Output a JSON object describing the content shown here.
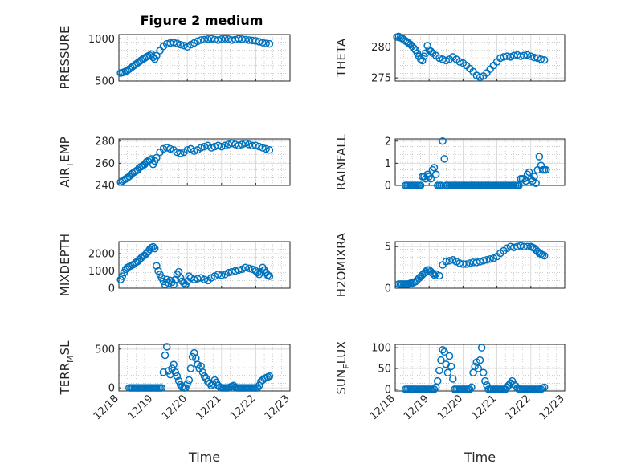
{
  "figure": {
    "title": "Figure 2 medium",
    "marker_color": "#0072BD",
    "axis_color": "#262626",
    "grid_color": "#b0b0b0"
  },
  "chart_data": [
    {
      "type": "scatter",
      "ylabel": "PRESSURE",
      "ylim": [
        500,
        1050
      ],
      "yticks": [
        500,
        1000
      ],
      "ytick_labels": [
        "500",
        "1000"
      ],
      "xlim": [
        0,
        5
      ],
      "x": [
        0.05,
        0.1,
        0.15,
        0.2,
        0.25,
        0.3,
        0.35,
        0.4,
        0.45,
        0.5,
        0.55,
        0.6,
        0.65,
        0.7,
        0.75,
        0.8,
        0.85,
        0.9,
        0.95,
        1.0,
        1.05,
        1.1,
        1.2,
        1.3,
        1.4,
        1.5,
        1.6,
        1.7,
        1.8,
        1.9,
        2.0,
        2.1,
        2.2,
        2.3,
        2.4,
        2.5,
        2.6,
        2.7,
        2.8,
        2.9,
        3.0,
        3.1,
        3.2,
        3.3,
        3.4,
        3.5,
        3.6,
        3.7,
        3.8,
        3.9,
        4.0,
        4.1,
        4.2,
        4.3,
        4.4
      ],
      "y": [
        595,
        600,
        605,
        615,
        625,
        640,
        655,
        670,
        685,
        700,
        715,
        730,
        745,
        760,
        770,
        785,
        795,
        805,
        820,
        780,
        760,
        800,
        860,
        910,
        940,
        950,
        955,
        945,
        930,
        920,
        905,
        930,
        950,
        970,
        985,
        990,
        995,
        1000,
        990,
        985,
        995,
        1000,
        995,
        985,
        990,
        1000,
        995,
        990,
        985,
        980,
        975,
        965,
        955,
        945,
        940
      ]
    },
    {
      "type": "scatter",
      "ylabel": "THETA",
      "ylim": [
        274.5,
        282
      ],
      "yticks": [
        275,
        280
      ],
      "ytick_labels": [
        "275",
        "280"
      ],
      "xlim": [
        0,
        5
      ],
      "x": [
        0.05,
        0.1,
        0.15,
        0.2,
        0.25,
        0.3,
        0.35,
        0.4,
        0.45,
        0.5,
        0.55,
        0.6,
        0.65,
        0.7,
        0.75,
        0.8,
        0.85,
        0.9,
        0.95,
        1.0,
        1.05,
        1.1,
        1.2,
        1.3,
        1.4,
        1.5,
        1.6,
        1.7,
        1.8,
        1.9,
        2.0,
        2.1,
        2.2,
        2.3,
        2.4,
        2.5,
        2.6,
        2.7,
        2.8,
        2.9,
        3.0,
        3.1,
        3.2,
        3.3,
        3.4,
        3.5,
        3.6,
        3.7,
        3.8,
        3.9,
        4.0,
        4.1,
        4.2,
        4.3,
        4.4
      ],
      "y": [
        281.6,
        281.7,
        281.5,
        281.4,
        281.2,
        281.0,
        280.8,
        280.6,
        280.4,
        280.1,
        279.8,
        279.5,
        279.0,
        278.5,
        278.0,
        277.8,
        278.5,
        279.0,
        280.2,
        279.5,
        279.3,
        279.0,
        278.6,
        278.2,
        278.0,
        277.8,
        278.0,
        278.4,
        278.0,
        277.6,
        277.4,
        277.0,
        276.5,
        276.0,
        275.4,
        275.1,
        275.3,
        275.8,
        276.4,
        277.0,
        277.6,
        278.2,
        278.4,
        278.5,
        278.4,
        278.6,
        278.7,
        278.5,
        278.6,
        278.7,
        278.5,
        278.3,
        278.2,
        278.0,
        277.9
      ]
    },
    {
      "type": "scatter",
      "ylabel": "AIR_TEMP",
      "ylim": [
        240,
        282
      ],
      "yticks": [
        240,
        260,
        280
      ],
      "ytick_labels": [
        "240",
        "260",
        "280"
      ],
      "xlim": [
        0,
        5
      ],
      "x": [
        0.05,
        0.1,
        0.15,
        0.2,
        0.25,
        0.3,
        0.35,
        0.4,
        0.45,
        0.5,
        0.55,
        0.6,
        0.65,
        0.7,
        0.75,
        0.8,
        0.85,
        0.9,
        0.95,
        1.0,
        1.05,
        1.1,
        1.2,
        1.3,
        1.4,
        1.5,
        1.6,
        1.7,
        1.8,
        1.9,
        2.0,
        2.1,
        2.2,
        2.3,
        2.4,
        2.5,
        2.6,
        2.7,
        2.8,
        2.9,
        3.0,
        3.1,
        3.2,
        3.3,
        3.4,
        3.5,
        3.6,
        3.7,
        3.8,
        3.9,
        4.0,
        4.1,
        4.2,
        4.3,
        4.4
      ],
      "y": [
        243,
        244,
        245,
        246,
        247,
        248,
        250,
        251,
        252,
        253,
        254,
        256,
        257,
        258,
        259,
        261,
        262,
        263,
        264,
        259,
        262,
        265,
        270,
        273,
        274,
        273,
        272,
        270,
        269,
        270,
        272,
        273,
        271,
        272,
        274,
        275,
        276,
        274,
        275,
        276,
        275,
        276,
        277,
        278,
        277,
        276,
        277,
        278,
        277,
        276,
        276,
        275,
        274,
        273,
        272
      ]
    },
    {
      "type": "scatter",
      "ylabel": "RAINFALL",
      "ylim": [
        0,
        2.1
      ],
      "yticks": [
        0,
        1,
        2
      ],
      "ytick_labels": [
        "0",
        "1",
        "2"
      ],
      "xlim": [
        0,
        5
      ],
      "x": [
        0.3,
        0.35,
        0.4,
        0.45,
        0.5,
        0.55,
        0.6,
        0.65,
        0.7,
        0.75,
        0.8,
        0.85,
        0.9,
        0.95,
        1.0,
        1.05,
        1.1,
        1.15,
        1.2,
        1.25,
        1.3,
        1.35,
        1.4,
        1.45,
        1.5,
        1.55,
        1.6,
        1.65,
        1.7,
        1.75,
        1.8,
        1.85,
        1.9,
        1.95,
        2.0,
        2.05,
        2.1,
        2.15,
        2.2,
        2.25,
        2.3,
        2.35,
        2.4,
        2.45,
        2.5,
        2.55,
        2.6,
        2.65,
        2.7,
        2.75,
        2.8,
        2.85,
        2.9,
        2.95,
        3.0,
        3.05,
        3.1,
        3.15,
        3.2,
        3.25,
        3.3,
        3.35,
        3.4,
        3.45,
        3.5,
        3.55,
        3.6,
        3.65,
        3.7,
        3.75,
        3.8,
        3.85,
        3.9,
        3.95,
        4.0,
        4.05,
        4.1,
        4.15,
        4.2,
        4.25,
        4.3,
        4.35,
        4.4,
        4.45
      ],
      "y": [
        0,
        0,
        0,
        0,
        0,
        0,
        0,
        0,
        0,
        0,
        0.4,
        0.4,
        0.3,
        0.5,
        0.4,
        0.3,
        0.7,
        0.8,
        0.5,
        0,
        0,
        0,
        2.0,
        1.2,
        0,
        0,
        0,
        0,
        0,
        0,
        0,
        0,
        0,
        0,
        0,
        0,
        0,
        0,
        0,
        0,
        0,
        0,
        0,
        0,
        0,
        0,
        0,
        0,
        0,
        0,
        0,
        0,
        0,
        0,
        0,
        0,
        0,
        0,
        0,
        0,
        0,
        0,
        0,
        0,
        0,
        0,
        0,
        0,
        0.3,
        0.3,
        0.3,
        0.2,
        0.5,
        0.6,
        0.3,
        0.2,
        0.4,
        0.1,
        0.7,
        1.3,
        0.9,
        0.7,
        0.7,
        0.7
      ]
    },
    {
      "type": "scatter",
      "ylabel": "MIXDEPTH",
      "ylim": [
        0,
        2700
      ],
      "yticks": [
        0,
        1000,
        2000
      ],
      "ytick_labels": [
        "0",
        "1000",
        "2000"
      ],
      "xlim": [
        0,
        5
      ],
      "x": [
        0.05,
        0.1,
        0.15,
        0.2,
        0.25,
        0.3,
        0.35,
        0.4,
        0.45,
        0.5,
        0.55,
        0.6,
        0.65,
        0.7,
        0.75,
        0.8,
        0.85,
        0.9,
        0.95,
        1.0,
        1.05,
        1.1,
        1.15,
        1.2,
        1.25,
        1.3,
        1.35,
        1.4,
        1.45,
        1.5,
        1.55,
        1.6,
        1.65,
        1.7,
        1.75,
        1.8,
        1.85,
        1.9,
        1.95,
        2.0,
        2.05,
        2.1,
        2.2,
        2.3,
        2.4,
        2.5,
        2.6,
        2.7,
        2.8,
        2.9,
        3.0,
        3.1,
        3.2,
        3.3,
        3.4,
        3.5,
        3.6,
        3.7,
        3.8,
        3.9,
        4.0,
        4.05,
        4.1,
        4.15,
        4.2,
        4.25,
        4.3,
        4.35,
        4.4
      ],
      "y": [
        500,
        700,
        900,
        1100,
        1200,
        1250,
        1300,
        1350,
        1400,
        1500,
        1550,
        1650,
        1750,
        1850,
        1900,
        2000,
        2100,
        2250,
        2350,
        2400,
        2300,
        1300,
        1000,
        800,
        600,
        400,
        200,
        500,
        300,
        450,
        350,
        200,
        500,
        800,
        950,
        600,
        400,
        300,
        200,
        400,
        700,
        600,
        500,
        550,
        600,
        500,
        450,
        600,
        700,
        800,
        750,
        800,
        900,
        950,
        1000,
        1050,
        1100,
        1200,
        1150,
        1100,
        1000,
        900,
        800,
        950,
        1200,
        1050,
        900,
        750,
        700
      ]
    },
    {
      "type": "scatter",
      "ylabel": "H2OMIXRA",
      "ylim": [
        0,
        5.6
      ],
      "yticks": [
        0,
        5
      ],
      "ytick_labels": [
        "0",
        "5"
      ],
      "xlim": [
        0,
        5
      ],
      "x": [
        0.1,
        0.15,
        0.2,
        0.25,
        0.3,
        0.35,
        0.4,
        0.45,
        0.5,
        0.55,
        0.6,
        0.65,
        0.7,
        0.75,
        0.8,
        0.85,
        0.9,
        0.95,
        1.0,
        1.05,
        1.1,
        1.15,
        1.2,
        1.3,
        1.4,
        1.5,
        1.6,
        1.7,
        1.8,
        1.9,
        2.0,
        2.1,
        2.2,
        2.3,
        2.4,
        2.5,
        2.6,
        2.7,
        2.8,
        2.9,
        3.0,
        3.1,
        3.2,
        3.3,
        3.4,
        3.5,
        3.6,
        3.7,
        3.8,
        3.9,
        4.0,
        4.05,
        4.1,
        4.15,
        4.2,
        4.25,
        4.3,
        4.35,
        4.4
      ],
      "y": [
        0.5,
        0.5,
        0.5,
        0.5,
        0.5,
        0.5,
        0.5,
        0.6,
        0.6,
        0.7,
        0.8,
        1.0,
        1.2,
        1.4,
        1.6,
        1.8,
        2.0,
        2.2,
        2.2,
        2.0,
        1.8,
        1.6,
        1.7,
        1.5,
        2.8,
        3.2,
        3.3,
        3.4,
        3.2,
        3.0,
        2.9,
        2.9,
        3.0,
        3.1,
        3.1,
        3.2,
        3.3,
        3.4,
        3.5,
        3.6,
        3.8,
        4.2,
        4.5,
        4.8,
        5.0,
        4.9,
        5.0,
        5.1,
        5.0,
        5.0,
        5.0,
        4.9,
        4.8,
        4.6,
        4.4,
        4.2,
        4.1,
        4.0,
        3.9
      ]
    },
    {
      "type": "scatter",
      "ylabel": "TERR_MSL",
      "ylim": [
        -40,
        560
      ],
      "yticks": [
        0,
        500
      ],
      "ytick_labels": [
        "0",
        "500"
      ],
      "xlim": [
        0,
        5
      ],
      "xticks": [
        0,
        1,
        2,
        3,
        4,
        5
      ],
      "xtick_labels": [
        "12/18",
        "12/19",
        "12/20",
        "12/21",
        "12/22",
        "12/23"
      ],
      "xlabel": "Time",
      "x": [
        0.3,
        0.35,
        0.4,
        0.45,
        0.5,
        0.55,
        0.6,
        0.65,
        0.7,
        0.75,
        0.8,
        0.85,
        0.9,
        0.95,
        1.0,
        1.05,
        1.1,
        1.15,
        1.2,
        1.25,
        1.3,
        1.35,
        1.4,
        1.45,
        1.5,
        1.55,
        1.6,
        1.65,
        1.7,
        1.75,
        1.8,
        1.85,
        1.9,
        1.95,
        2.0,
        2.05,
        2.1,
        2.15,
        2.2,
        2.25,
        2.3,
        2.35,
        2.4,
        2.45,
        2.5,
        2.55,
        2.6,
        2.65,
        2.7,
        2.75,
        2.8,
        2.85,
        2.9,
        2.95,
        3.0,
        3.05,
        3.1,
        3.15,
        3.2,
        3.25,
        3.3,
        3.35,
        3.4,
        3.45,
        3.5,
        3.55,
        3.6,
        3.65,
        3.7,
        3.75,
        3.8,
        3.85,
        3.9,
        3.95,
        4.0,
        4.05,
        4.1,
        4.15,
        4.2,
        4.25,
        4.3,
        4.35,
        4.4
      ],
      "y": [
        0,
        0,
        0,
        0,
        0,
        0,
        0,
        0,
        0,
        0,
        0,
        0,
        0,
        0,
        0,
        0,
        0,
        0,
        0,
        0,
        200,
        420,
        530,
        220,
        170,
        250,
        300,
        200,
        150,
        90,
        40,
        10,
        0,
        0,
        50,
        100,
        250,
        400,
        450,
        380,
        300,
        250,
        280,
        200,
        150,
        120,
        80,
        60,
        30,
        50,
        100,
        70,
        30,
        10,
        0,
        0,
        0,
        0,
        0,
        10,
        20,
        30,
        10,
        0,
        0,
        0,
        0,
        0,
        0,
        0,
        0,
        0,
        0,
        0,
        0,
        0,
        30,
        80,
        100,
        120,
        130,
        140,
        150
      ]
    },
    {
      "type": "scatter",
      "ylabel": "SUN_FLUX",
      "ylim": [
        -4,
        108
      ],
      "yticks": [
        0,
        50,
        100
      ],
      "ytick_labels": [
        "0",
        "50",
        "100"
      ],
      "xlim": [
        0,
        5
      ],
      "xticks": [
        0,
        1,
        2,
        3,
        4,
        5
      ],
      "xtick_labels": [
        "12/18",
        "12/19",
        "12/20",
        "12/21",
        "12/22",
        "12/23"
      ],
      "xlabel": "Time",
      "x": [
        0.3,
        0.35,
        0.4,
        0.45,
        0.5,
        0.55,
        0.6,
        0.65,
        0.7,
        0.75,
        0.8,
        0.85,
        0.9,
        0.95,
        1.0,
        1.05,
        1.1,
        1.15,
        1.2,
        1.25,
        1.3,
        1.35,
        1.4,
        1.45,
        1.5,
        1.55,
        1.6,
        1.65,
        1.7,
        1.75,
        1.8,
        1.85,
        1.9,
        1.95,
        2.0,
        2.05,
        2.1,
        2.15,
        2.2,
        2.25,
        2.3,
        2.35,
        2.4,
        2.45,
        2.5,
        2.55,
        2.6,
        2.65,
        2.7,
        2.75,
        2.8,
        2.85,
        2.9,
        2.95,
        3.0,
        3.05,
        3.1,
        3.15,
        3.2,
        3.25,
        3.3,
        3.35,
        3.4,
        3.45,
        3.5,
        3.55,
        3.6,
        3.65,
        3.7,
        3.75,
        3.8,
        3.85,
        3.9,
        3.95,
        4.0,
        4.05,
        4.1,
        4.15,
        4.2,
        4.25,
        4.3,
        4.35,
        4.4
      ],
      "y": [
        0,
        0,
        0,
        0,
        0,
        0,
        0,
        0,
        0,
        0,
        0,
        0,
        0,
        0,
        0,
        0,
        0,
        0,
        5,
        20,
        45,
        70,
        95,
        90,
        60,
        40,
        80,
        55,
        25,
        0,
        0,
        0,
        0,
        0,
        0,
        0,
        0,
        0,
        0,
        5,
        40,
        55,
        65,
        50,
        70,
        100,
        40,
        20,
        10,
        0,
        0,
        0,
        0,
        0,
        0,
        0,
        0,
        0,
        0,
        0,
        5,
        10,
        15,
        20,
        12,
        8,
        3,
        0,
        0,
        0,
        0,
        0,
        0,
        0,
        0,
        0,
        0,
        0,
        0,
        0,
        0,
        3,
        5
      ]
    }
  ]
}
